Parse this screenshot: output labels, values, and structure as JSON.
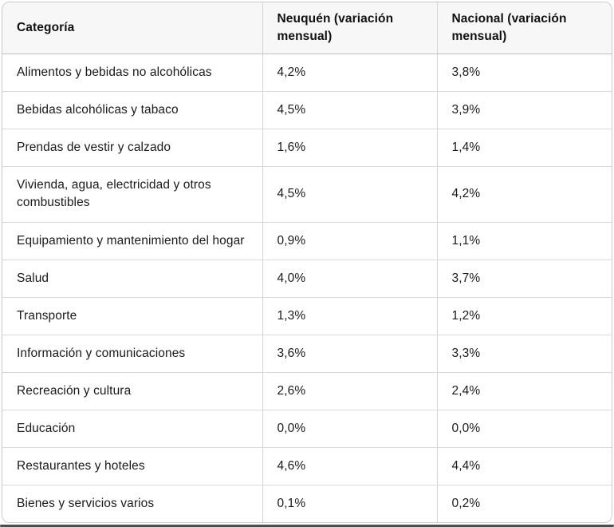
{
  "colors": {
    "card_border": "#c9c9c9",
    "header_background": "#f7f7f7",
    "header_bottom_border": "#bfbfbf",
    "row_border": "#d9d9d9",
    "column_border": "#d4d4d4",
    "text": "#1a1a1a",
    "bottom_rule": "#4d4d4d"
  },
  "table": {
    "columns": [
      {
        "label": "Categoría"
      },
      {
        "label": "Neuquén (variación mensual)"
      },
      {
        "label": "Nacional (variación mensual)"
      }
    ],
    "rows": [
      {
        "category": "Alimentos y bebidas no alcohólicas",
        "neuquen": "4,2%",
        "nacional": "3,8%"
      },
      {
        "category": "Bebidas alcohólicas y tabaco",
        "neuquen": "4,5%",
        "nacional": "3,9%"
      },
      {
        "category": "Prendas de vestir y calzado",
        "neuquen": "1,6%",
        "nacional": "1,4%"
      },
      {
        "category": "Vivienda, agua, electricidad y otros combustibles",
        "neuquen": "4,5%",
        "nacional": "4,2%"
      },
      {
        "category": "Equipamiento y mantenimiento del hogar",
        "neuquen": "0,9%",
        "nacional": "1,1%"
      },
      {
        "category": "Salud",
        "neuquen": "4,0%",
        "nacional": "3,7%"
      },
      {
        "category": "Transporte",
        "neuquen": "1,3%",
        "nacional": "1,2%"
      },
      {
        "category": "Información y comunicaciones",
        "neuquen": "3,6%",
        "nacional": "3,3%"
      },
      {
        "category": "Recreación y cultura",
        "neuquen": "2,6%",
        "nacional": "2,4%"
      },
      {
        "category": "Educación",
        "neuquen": "0,0%",
        "nacional": "0,0%"
      },
      {
        "category": "Restaurantes y hoteles",
        "neuquen": "4,6%",
        "nacional": "4,4%"
      },
      {
        "category": "Bienes y servicios varios",
        "neuquen": "0,1%",
        "nacional": "0,2%"
      }
    ]
  },
  "chart_data": {
    "type": "table",
    "title": "",
    "columns": [
      "Categoría",
      "Neuquén (variación mensual)",
      "Nacional (variación mensual)"
    ],
    "categories": [
      "Alimentos y bebidas no alcohólicas",
      "Bebidas alcohólicas y tabaco",
      "Prendas de vestir y calzado",
      "Vivienda, agua, electricidad y otros combustibles",
      "Equipamiento y mantenimiento del hogar",
      "Salud",
      "Transporte",
      "Información y comunicaciones",
      "Recreación y cultura",
      "Educación",
      "Restaurantes y hoteles",
      "Bienes y servicios varios"
    ],
    "series": [
      {
        "name": "Neuquén (variación mensual)",
        "values": [
          4.2,
          4.5,
          1.6,
          4.5,
          0.9,
          4.0,
          1.3,
          3.6,
          2.6,
          0.0,
          4.6,
          0.1
        ]
      },
      {
        "name": "Nacional (variación mensual)",
        "values": [
          3.8,
          3.9,
          1.4,
          4.2,
          1.1,
          3.7,
          1.2,
          3.3,
          2.4,
          0.0,
          4.4,
          0.2
        ]
      }
    ],
    "value_unit": "percent",
    "number_format": "comma-decimal"
  }
}
